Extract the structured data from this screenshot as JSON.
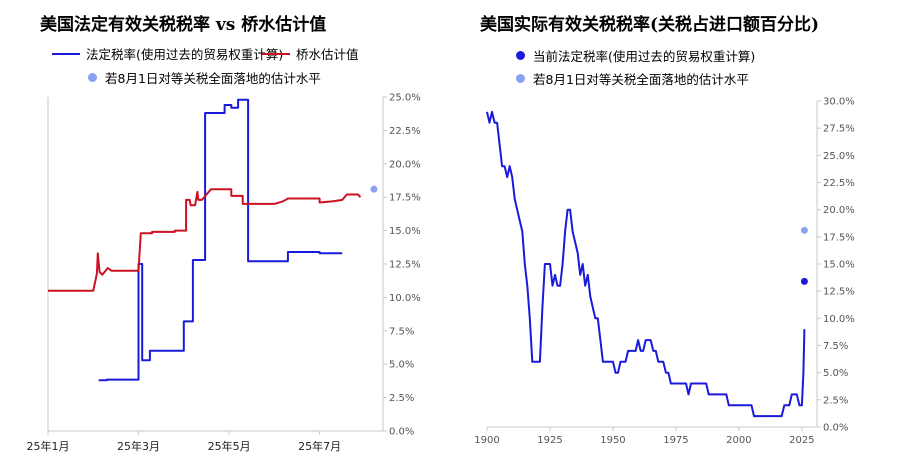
{
  "chart_data": [
    {
      "type": "line",
      "title": "美国法定有效关税税率 vs 桥水估计值",
      "legend": [
        {
          "label": "法定税率(使用过去的贸易权重计算)",
          "color": "#1a1adc"
        },
        {
          "label": "桥水估计值",
          "color": "#cc1122"
        },
        {
          "label": "若8月1日对等关税全面落地的估计水平",
          "color": "#8aa0f0"
        }
      ],
      "x_ticks": [
        "25年1月",
        "25年3月",
        "25年5月",
        "25年7月"
      ],
      "y_ticks": [
        "0.0%",
        "2.5%",
        "5.0%",
        "7.5%",
        "10.0%",
        "12.5%",
        "15.0%",
        "17.5%",
        "20.0%",
        "22.5%",
        "25.0%"
      ],
      "ylim": [
        0,
        25
      ],
      "y_axis_position": "right",
      "grid": false,
      "series": [
        {
          "name": "法定税率(使用过去的贸易权重计算)",
          "color": "#1a1adc",
          "points": [
            [
              2.12,
              3.8
            ],
            [
              2.3,
              3.8
            ],
            [
              2.3,
              3.85
            ],
            [
              3.0,
              3.85
            ],
            [
              3.0,
              12.5
            ],
            [
              3.08,
              12.5
            ],
            [
              3.08,
              5.3
            ],
            [
              3.25,
              5.3
            ],
            [
              3.25,
              6.0
            ],
            [
              4.0,
              6.0
            ],
            [
              4.0,
              8.2
            ],
            [
              4.2,
              8.2
            ],
            [
              4.2,
              12.8
            ],
            [
              4.47,
              12.8
            ],
            [
              4.47,
              23.8
            ],
            [
              4.9,
              23.8
            ],
            [
              4.9,
              24.4
            ],
            [
              5.05,
              24.4
            ],
            [
              5.05,
              24.2
            ],
            [
              5.2,
              24.2
            ],
            [
              5.2,
              24.8
            ],
            [
              5.42,
              24.8
            ],
            [
              5.42,
              12.7
            ],
            [
              6.3,
              12.7
            ],
            [
              6.3,
              13.4
            ],
            [
              7.0,
              13.4
            ],
            [
              7.0,
              13.3
            ],
            [
              7.5,
              13.3
            ]
          ]
        },
        {
          "name": "桥水估计值",
          "color": "#cc1122",
          "points": [
            [
              1.0,
              10.5
            ],
            [
              2.0,
              10.5
            ],
            [
              2.08,
              11.8
            ],
            [
              2.1,
              13.3
            ],
            [
              2.14,
              11.9
            ],
            [
              2.2,
              11.7
            ],
            [
              2.32,
              12.2
            ],
            [
              2.4,
              12.0
            ],
            [
              2.7,
              12.0
            ],
            [
              3.0,
              12.0
            ],
            [
              3.05,
              14.8
            ],
            [
              3.3,
              14.8
            ],
            [
              3.3,
              14.9
            ],
            [
              3.8,
              14.9
            ],
            [
              3.8,
              15.0
            ],
            [
              4.05,
              15.0
            ],
            [
              4.05,
              17.3
            ],
            [
              4.13,
              17.3
            ],
            [
              4.15,
              16.9
            ],
            [
              4.25,
              16.9
            ],
            [
              4.3,
              17.9
            ],
            [
              4.32,
              17.3
            ],
            [
              4.4,
              17.3
            ],
            [
              4.6,
              18.1
            ],
            [
              5.05,
              18.1
            ],
            [
              5.05,
              17.6
            ],
            [
              5.3,
              17.6
            ],
            [
              5.3,
              17.0
            ],
            [
              6.0,
              17.0
            ],
            [
              6.2,
              17.2
            ],
            [
              6.3,
              17.4
            ],
            [
              7.0,
              17.4
            ],
            [
              7.0,
              17.1
            ],
            [
              7.3,
              17.2
            ],
            [
              7.5,
              17.3
            ],
            [
              7.6,
              17.7
            ],
            [
              7.85,
              17.7
            ],
            [
              7.9,
              17.5
            ]
          ]
        }
      ],
      "projection_point": {
        "x": 8.2,
        "y": 18.1,
        "color": "#8aa0f0"
      }
    },
    {
      "type": "line",
      "title": "美国实际有效关税税率(关税占进口额百分比)",
      "legend": [
        {
          "label": "当前法定税率(使用过去的贸易权重计算)",
          "color": "#1a1adc"
        },
        {
          "label": "若8月1日对等关税全面落地的估计水平",
          "color": "#8aa0f0"
        }
      ],
      "x_ticks": [
        "1900",
        "1925",
        "1950",
        "1975",
        "2000",
        "2025"
      ],
      "y_ticks": [
        "0.0%",
        "2.5%",
        "5.0%",
        "7.5%",
        "10.0%",
        "12.5%",
        "15.0%",
        "17.5%",
        "20.0%",
        "22.5%",
        "25.0%",
        "27.5%",
        "30.0%"
      ],
      "xlim": [
        1900,
        2031
      ],
      "ylim": [
        0,
        30
      ],
      "y_axis_position": "right",
      "grid": false,
      "series": [
        {
          "name": "实际有效关税税率",
          "color": "#1a1adc",
          "points": [
            [
              1900,
              29
            ],
            [
              1901,
              28
            ],
            [
              1902,
              29
            ],
            [
              1903,
              28
            ],
            [
              1904,
              28
            ],
            [
              1905,
              26
            ],
            [
              1906,
              24
            ],
            [
              1907,
              24
            ],
            [
              1908,
              23
            ],
            [
              1909,
              24
            ],
            [
              1910,
              23
            ],
            [
              1911,
              21
            ],
            [
              1912,
              20
            ],
            [
              1913,
              19
            ],
            [
              1914,
              18
            ],
            [
              1915,
              15
            ],
            [
              1916,
              13
            ],
            [
              1917,
              10
            ],
            [
              1918,
              6
            ],
            [
              1919,
              6
            ],
            [
              1920,
              6
            ],
            [
              1921,
              6
            ],
            [
              1922,
              11
            ],
            [
              1923,
              15
            ],
            [
              1924,
              15
            ],
            [
              1925,
              15
            ],
            [
              1926,
              13
            ],
            [
              1927,
              14
            ],
            [
              1928,
              13
            ],
            [
              1929,
              13
            ],
            [
              1930,
              15
            ],
            [
              1931,
              18
            ],
            [
              1932,
              20
            ],
            [
              1933,
              20
            ],
            [
              1934,
              18
            ],
            [
              1935,
              17
            ],
            [
              1936,
              16
            ],
            [
              1937,
              14
            ],
            [
              1938,
              15
            ],
            [
              1939,
              13
            ],
            [
              1940,
              14
            ],
            [
              1941,
              12
            ],
            [
              1942,
              11
            ],
            [
              1943,
              10
            ],
            [
              1944,
              10
            ],
            [
              1945,
              8
            ],
            [
              1946,
              6
            ],
            [
              1947,
              6
            ],
            [
              1948,
              6
            ],
            [
              1949,
              6
            ],
            [
              1950,
              6
            ],
            [
              1951,
              5
            ],
            [
              1952,
              5
            ],
            [
              1953,
              6
            ],
            [
              1954,
              6
            ],
            [
              1955,
              6
            ],
            [
              1956,
              7
            ],
            [
              1957,
              7
            ],
            [
              1958,
              7
            ],
            [
              1959,
              7
            ],
            [
              1960,
              8
            ],
            [
              1961,
              7
            ],
            [
              1962,
              7
            ],
            [
              1963,
              8
            ],
            [
              1964,
              8
            ],
            [
              1965,
              8
            ],
            [
              1966,
              7
            ],
            [
              1967,
              7
            ],
            [
              1968,
              6
            ],
            [
              1969,
              6
            ],
            [
              1970,
              6
            ],
            [
              1971,
              5
            ],
            [
              1972,
              5
            ],
            [
              1973,
              4
            ],
            [
              1974,
              4
            ],
            [
              1975,
              4
            ],
            [
              1976,
              4
            ],
            [
              1977,
              4
            ],
            [
              1978,
              4
            ],
            [
              1979,
              4
            ],
            [
              1980,
              3
            ],
            [
              1981,
              4
            ],
            [
              1982,
              4
            ],
            [
              1983,
              4
            ],
            [
              1984,
              4
            ],
            [
              1985,
              4
            ],
            [
              1986,
              4
            ],
            [
              1987,
              4
            ],
            [
              1988,
              3
            ],
            [
              1989,
              3
            ],
            [
              1990,
              3
            ],
            [
              1991,
              3
            ],
            [
              1992,
              3
            ],
            [
              1993,
              3
            ],
            [
              1994,
              3
            ],
            [
              1995,
              3
            ],
            [
              1996,
              2
            ],
            [
              1997,
              2
            ],
            [
              1998,
              2
            ],
            [
              1999,
              2
            ],
            [
              2000,
              2
            ],
            [
              2001,
              2
            ],
            [
              2002,
              2
            ],
            [
              2003,
              2
            ],
            [
              2004,
              2
            ],
            [
              2005,
              2
            ],
            [
              2006,
              1
            ],
            [
              2007,
              1
            ],
            [
              2008,
              1
            ],
            [
              2009,
              1
            ],
            [
              2010,
              1
            ],
            [
              2011,
              1
            ],
            [
              2012,
              1
            ],
            [
              2013,
              1
            ],
            [
              2014,
              1
            ],
            [
              2015,
              1
            ],
            [
              2016,
              1
            ],
            [
              2017,
              1
            ],
            [
              2018,
              2
            ],
            [
              2019,
              2
            ],
            [
              2020,
              2
            ],
            [
              2021,
              3
            ],
            [
              2022,
              3
            ],
            [
              2023,
              3
            ],
            [
              2024,
              2
            ],
            [
              2025,
              2
            ],
            [
              2025.6,
              5
            ],
            [
              2026,
              9
            ]
          ]
        }
      ],
      "markers": [
        {
          "label": "当前法定税率(使用过去的贸易权重计算)",
          "x": 2026,
          "y": 13.4,
          "color": "#1a1adc"
        },
        {
          "label": "若8月1日对等关税全面落地的估计水平",
          "x": 2026,
          "y": 18.1,
          "color": "#8aa0f0"
        }
      ]
    }
  ]
}
